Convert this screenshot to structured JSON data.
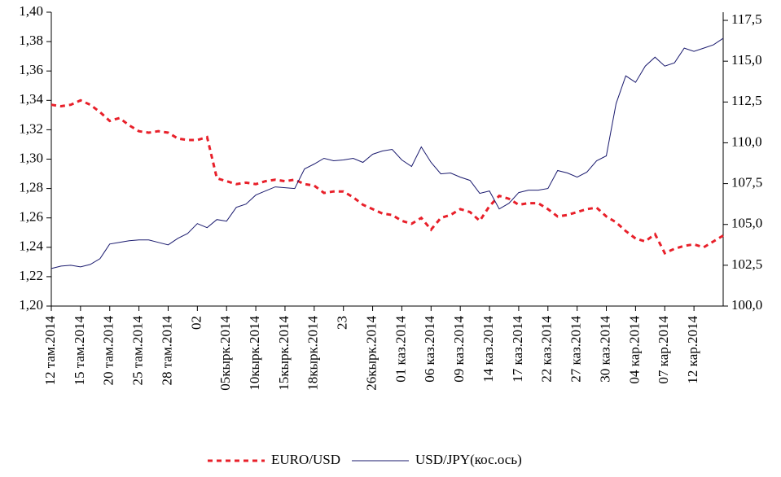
{
  "chart_data": {
    "type": "line",
    "categories": [
      "12 там.2014",
      null,
      null,
      "15 там.2014",
      null,
      null,
      "20 там.2014",
      null,
      null,
      "25 там.2014",
      null,
      null,
      "28 там.2014",
      null,
      null,
      "02",
      null,
      null,
      "05кырк.2014",
      null,
      null,
      "10кырк.2014",
      null,
      null,
      "15кырк.2014",
      null,
      null,
      "18кырк.2014",
      null,
      null,
      "23",
      null,
      null,
      "26кырк.2014",
      null,
      null,
      "01 каз.2014",
      null,
      null,
      "06 каз.2014",
      null,
      null,
      "09 каз.2014",
      null,
      null,
      "14 каз.2014",
      null,
      null,
      "17 каз.2014",
      null,
      null,
      "22 каз.2014",
      null,
      null,
      "27 каз.2014",
      null,
      null,
      "30 каз.2014",
      null,
      null,
      "04 кар.2014",
      null,
      null,
      "07 кар.2014",
      null,
      null,
      "12 кар.2014",
      null,
      null,
      null
    ],
    "series": [
      {
        "name": "EURO/USD",
        "color": "#e8202a",
        "dashed": true,
        "values": [
          1.337,
          1.336,
          1.337,
          1.34,
          1.337,
          1.332,
          1.326,
          1.328,
          1.323,
          1.319,
          1.318,
          1.319,
          1.318,
          1.314,
          1.313,
          1.313,
          1.315,
          1.287,
          1.285,
          1.283,
          1.284,
          1.283,
          1.285,
          1.286,
          1.285,
          1.286,
          1.283,
          1.282,
          1.277,
          1.278,
          1.278,
          1.274,
          1.269,
          1.266,
          1.263,
          1.262,
          1.258,
          1.256,
          1.26,
          1.252,
          1.26,
          1.262,
          1.266,
          1.264,
          1.258,
          1.268,
          1.275,
          1.273,
          1.269,
          1.27,
          1.27,
          1.266,
          1.261,
          1.262,
          1.264,
          1.266,
          1.267,
          1.261,
          1.257,
          1.251,
          1.246,
          1.244,
          1.249,
          1.236,
          1.239,
          1.241,
          1.242,
          1.24,
          1.244,
          1.248
        ]
      },
      {
        "name": "USD/JPY(кос.ось)",
        "color": "#1a1a6e",
        "dashed": false,
        "axis": "y2",
        "values": [
          102.3,
          102.45,
          102.5,
          102.4,
          102.55,
          102.9,
          103.8,
          103.9,
          104.0,
          104.05,
          104.05,
          103.9,
          103.75,
          104.15,
          104.45,
          105.05,
          104.8,
          105.3,
          105.2,
          106.05,
          106.25,
          106.8,
          107.05,
          107.3,
          107.25,
          107.2,
          108.4,
          108.7,
          109.05,
          108.9,
          108.95,
          109.05,
          108.8,
          109.3,
          109.5,
          109.6,
          108.95,
          108.55,
          109.75,
          108.8,
          108.1,
          108.15,
          107.9,
          107.7,
          106.9,
          107.05,
          105.95,
          106.3,
          106.95,
          107.1,
          107.1,
          107.2,
          108.3,
          108.15,
          107.9,
          108.2,
          108.9,
          109.2,
          112.4,
          114.1,
          113.7,
          114.7,
          115.25,
          114.7,
          114.9,
          115.8,
          115.6,
          115.8,
          116.0,
          116.4
        ]
      }
    ],
    "ylim": [
      1.2,
      1.4
    ],
    "yticks": [
      {
        "value": 1.2,
        "label": "1,20"
      },
      {
        "value": 1.22,
        "label": "1,22"
      },
      {
        "value": 1.24,
        "label": "1,24"
      },
      {
        "value": 1.26,
        "label": "1,26"
      },
      {
        "value": 1.28,
        "label": "1,28"
      },
      {
        "value": 1.3,
        "label": "1,30"
      },
      {
        "value": 1.32,
        "label": "1,32"
      },
      {
        "value": 1.34,
        "label": "1,34"
      },
      {
        "value": 1.36,
        "label": "1,36"
      },
      {
        "value": 1.38,
        "label": "1,38"
      },
      {
        "value": 1.4,
        "label": "1,40"
      }
    ],
    "y2lim": [
      100,
      118
    ],
    "y2ticks": [
      {
        "value": 100,
        "label": "100,0"
      },
      {
        "value": 102.5,
        "label": "102,5"
      },
      {
        "value": 105,
        "label": "105,0"
      },
      {
        "value": 107.5,
        "label": "107,5"
      },
      {
        "value": 110,
        "label": "110,0"
      },
      {
        "value": 112.5,
        "label": "112,5"
      },
      {
        "value": 115,
        "label": "115,0"
      },
      {
        "value": 117.5,
        "label": "117,5"
      }
    ],
    "grid": false,
    "legend": "bottom"
  }
}
